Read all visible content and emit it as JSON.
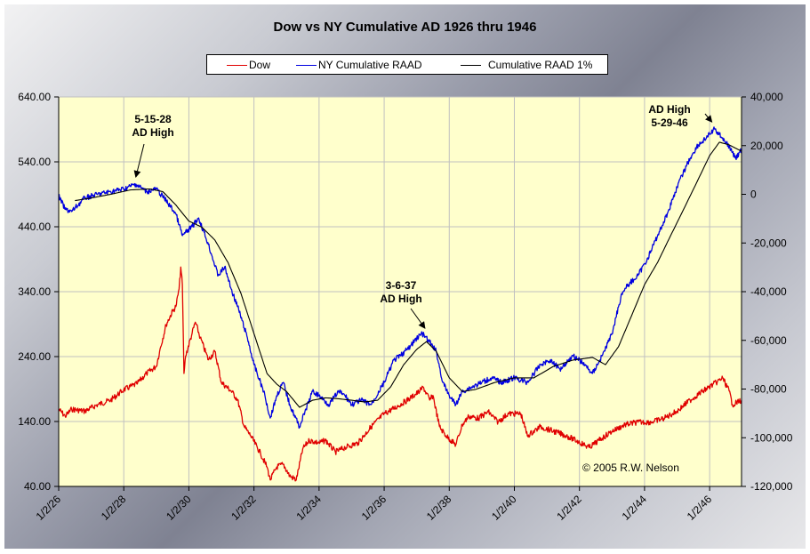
{
  "chart_data": {
    "type": "line",
    "title": "Dow vs NY Cumulative AD 1926 thru 1946",
    "xlabel": "",
    "ylabel": "",
    "y2label": "",
    "x_axis": {
      "min_year": 1926.0,
      "max_year": 1946.98,
      "tick_years": [
        1926,
        1928,
        1930,
        1932,
        1934,
        1936,
        1938,
        1940,
        1942,
        1944,
        1946
      ],
      "tick_labels": [
        "1/2/26",
        "1/2/28",
        "1/2/30",
        "1/2/32",
        "1/2/34",
        "1/2/36",
        "1/2/38",
        "1/2/40",
        "1/2/42",
        "1/2/44",
        "1/2/46"
      ]
    },
    "y_left": {
      "ylim": [
        40,
        640
      ],
      "ticks": [
        40,
        140,
        240,
        340,
        440,
        540,
        640
      ],
      "tick_labels": [
        "40.00",
        "140.00",
        "240.00",
        "340.00",
        "440.00",
        "540.00",
        "640.00"
      ]
    },
    "y_right": {
      "ylim": [
        -120000,
        40000
      ],
      "ticks": [
        -120000,
        -100000,
        -80000,
        -60000,
        -40000,
        -20000,
        0,
        20000,
        40000
      ],
      "tick_labels": [
        "-120,000",
        "-100,000",
        "-80,000",
        "-60,000",
        "-40,000",
        "-20,000",
        "0",
        "20,000",
        "40,000"
      ]
    },
    "grid": true,
    "legend_position": "top-center",
    "series": [
      {
        "name": "Dow",
        "axis": "left",
        "color": "#e00000",
        "x": [
          1926.0,
          1926.2,
          1926.4,
          1926.8,
          1927.2,
          1927.6,
          1928.0,
          1928.4,
          1928.7,
          1929.0,
          1929.1,
          1929.3,
          1929.5,
          1929.6,
          1929.7,
          1929.75,
          1929.8,
          1929.85,
          1929.9,
          1930.1,
          1930.2,
          1930.35,
          1930.6,
          1930.8,
          1931.0,
          1931.3,
          1931.5,
          1931.7,
          1931.9,
          1932.2,
          1932.4,
          1932.5,
          1932.7,
          1932.9,
          1933.1,
          1933.3,
          1933.5,
          1933.7,
          1934.0,
          1934.2,
          1934.5,
          1934.8,
          1935.2,
          1935.6,
          1936.0,
          1936.4,
          1936.8,
          1937.1,
          1937.2,
          1937.4,
          1937.5,
          1937.7,
          1937.9,
          1938.2,
          1938.4,
          1938.6,
          1938.9,
          1939.2,
          1939.5,
          1939.8,
          1940.2,
          1940.4,
          1940.8,
          1941.2,
          1941.6,
          1942.0,
          1942.3,
          1942.6,
          1943.0,
          1943.4,
          1943.8,
          1944.2,
          1944.6,
          1945.0,
          1945.4,
          1945.8,
          1946.2,
          1946.4,
          1946.6,
          1946.7,
          1946.98
        ],
        "values": [
          159,
          148,
          159,
          156,
          166,
          173,
          189,
          198,
          214,
          225,
          248,
          289,
          310,
          317,
          344,
          378,
          351,
          214,
          241,
          276,
          293,
          269,
          235,
          248,
          200,
          187,
          173,
          132,
          118,
          91,
          70,
          50,
          70,
          74,
          56,
          50,
          98,
          111,
          107,
          111,
          93,
          100,
          107,
          132,
          152,
          163,
          176,
          187,
          193,
          173,
          180,
          132,
          118,
          104,
          135,
          148,
          145,
          155,
          139,
          152,
          152,
          118,
          132,
          125,
          118,
          108,
          100,
          111,
          125,
          135,
          139,
          139,
          145,
          156,
          173,
          187,
          200,
          207,
          187,
          166,
          173
        ]
      },
      {
        "name": "NY Cumulative RAAD",
        "axis": "right",
        "color": "#0000e0",
        "x": [
          1926.0,
          1926.2,
          1926.4,
          1926.8,
          1927.2,
          1927.6,
          1928.0,
          1928.37,
          1928.7,
          1929.0,
          1929.3,
          1929.6,
          1929.8,
          1930.1,
          1930.3,
          1930.6,
          1930.9,
          1931.1,
          1931.3,
          1931.5,
          1931.8,
          1932.0,
          1932.3,
          1932.5,
          1932.7,
          1932.9,
          1933.1,
          1933.4,
          1933.6,
          1933.8,
          1934.0,
          1934.3,
          1934.6,
          1934.8,
          1935.0,
          1935.3,
          1935.6,
          1936.0,
          1936.3,
          1936.5,
          1936.8,
          1937.0,
          1937.17,
          1937.4,
          1937.6,
          1937.8,
          1938.0,
          1938.2,
          1938.4,
          1938.7,
          1939.0,
          1939.3,
          1939.6,
          1940.0,
          1940.4,
          1940.8,
          1941.1,
          1941.4,
          1941.8,
          1942.1,
          1942.4,
          1942.7,
          1943.0,
          1943.3,
          1943.5,
          1943.8,
          1944.1,
          1944.4,
          1944.7,
          1945.0,
          1945.3,
          1945.6,
          1945.9,
          1946.15,
          1946.4,
          1946.6,
          1946.8,
          1946.98
        ],
        "values": [
          -700,
          -6200,
          -7100,
          -1500,
          0,
          1100,
          2200,
          4200,
          1100,
          2200,
          -2600,
          -8000,
          -17000,
          -13300,
          -9700,
          -20600,
          -33400,
          -29800,
          -38900,
          -46200,
          -59000,
          -70000,
          -81000,
          -91900,
          -82700,
          -77300,
          -86400,
          -95500,
          -88200,
          -81000,
          -82700,
          -86400,
          -81000,
          -82700,
          -86400,
          -84600,
          -86400,
          -77300,
          -68100,
          -66300,
          -62600,
          -59000,
          -57200,
          -60800,
          -64500,
          -77300,
          -82700,
          -86400,
          -81000,
          -79100,
          -77300,
          -75400,
          -77300,
          -75400,
          -77300,
          -70000,
          -68100,
          -71800,
          -66300,
          -69200,
          -73600,
          -66300,
          -57200,
          -40700,
          -37100,
          -33400,
          -26100,
          -17000,
          -8000,
          3000,
          12200,
          19500,
          23200,
          26800,
          23200,
          19500,
          14800,
          18400
        ]
      },
      {
        "name": "Cumulative RAAD 1%",
        "axis": "right",
        "color": "#000000",
        "x": [
          1926.5,
          1927.0,
          1927.6,
          1928.2,
          1928.8,
          1929.2,
          1929.6,
          1930.0,
          1930.4,
          1930.8,
          1931.2,
          1931.6,
          1932.0,
          1932.4,
          1932.7,
          1933.0,
          1933.4,
          1933.8,
          1934.2,
          1934.6,
          1935.0,
          1935.4,
          1935.8,
          1936.2,
          1936.6,
          1937.0,
          1937.3,
          1937.6,
          1938.0,
          1938.4,
          1938.8,
          1939.4,
          1940.0,
          1940.6,
          1941.2,
          1941.8,
          1942.4,
          1942.8,
          1943.2,
          1943.6,
          1944.0,
          1944.4,
          1944.8,
          1945.2,
          1945.6,
          1946.0,
          1946.3,
          1946.6,
          1946.98
        ],
        "values": [
          -2600,
          -1500,
          0,
          1800,
          2200,
          1100,
          -4400,
          -11000,
          -13500,
          -18800,
          -28000,
          -40700,
          -57200,
          -73600,
          -78000,
          -81000,
          -87500,
          -84600,
          -83600,
          -84000,
          -84600,
          -85300,
          -84600,
          -79100,
          -70000,
          -63700,
          -60500,
          -64500,
          -75400,
          -81000,
          -80200,
          -77300,
          -75400,
          -75400,
          -70700,
          -68100,
          -67000,
          -70000,
          -62600,
          -49900,
          -37100,
          -28000,
          -17000,
          -6200,
          4800,
          15900,
          21400,
          20300,
          17700
        ]
      }
    ],
    "annotations": [
      {
        "lines": [
          "5-15-28",
          "AD High"
        ],
        "target_year": 1928.37,
        "target_value": 4200,
        "axis": "right"
      },
      {
        "lines": [
          "3-6-37",
          "AD High"
        ],
        "target_year": 1937.17,
        "target_value": -57200,
        "axis": "right"
      },
      {
        "lines": [
          "AD High",
          "5-29-46"
        ],
        "target_year": 1946.15,
        "target_value": 26800,
        "axis": "right"
      }
    ],
    "copyright": "© 2005 R.W. Nelson"
  },
  "legend": {
    "items": [
      {
        "label": "Dow",
        "color": "#e00000"
      },
      {
        "label": "NY Cumulative RAAD",
        "color": "#0000e0"
      },
      {
        "label": "Cumulative RAAD 1%",
        "color": "#000000"
      }
    ]
  },
  "colors": {
    "plot_background": "#ffffcc",
    "gridline": "#c0c0c0"
  }
}
